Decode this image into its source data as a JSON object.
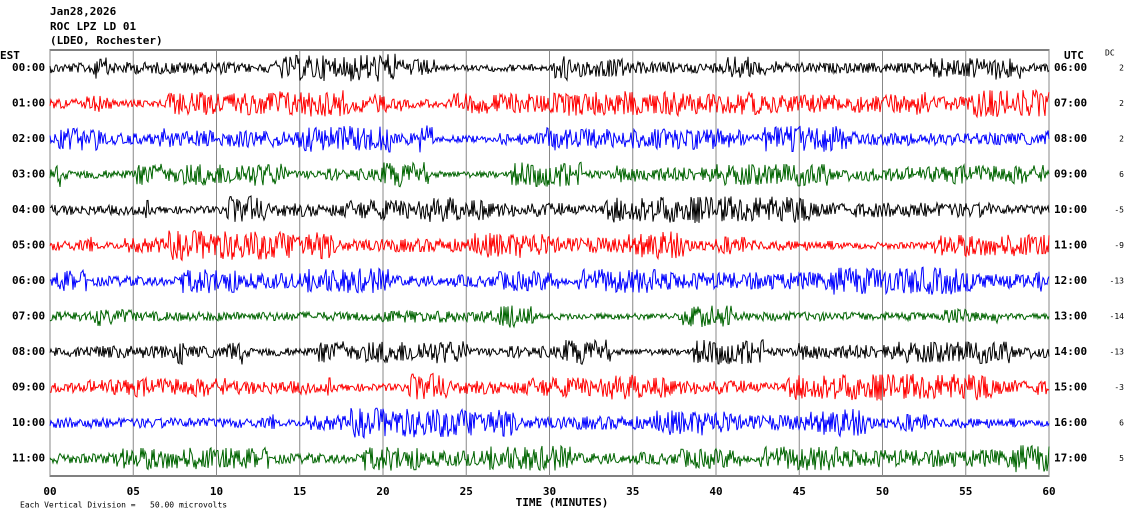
{
  "header": {
    "date": "Jan28,2026",
    "station": "ROC LPZ LD 01",
    "location": "(LDEO, Rochester)"
  },
  "left_axis_label": "EST",
  "right_axis_label": "UTC",
  "dc_label": "DC",
  "rows": [
    {
      "est": "00:00",
      "utc": "06:00",
      "dc": 2,
      "color": "#000000"
    },
    {
      "est": "01:00",
      "utc": "07:00",
      "dc": 2,
      "color": "#ff0000"
    },
    {
      "est": "02:00",
      "utc": "08:00",
      "dc": 2,
      "color": "#0000ff"
    },
    {
      "est": "03:00",
      "utc": "09:00",
      "dc": 6,
      "color": "#006400"
    },
    {
      "est": "04:00",
      "utc": "10:00",
      "dc": -5,
      "color": "#000000"
    },
    {
      "est": "05:00",
      "utc": "11:00",
      "dc": -9,
      "color": "#ff0000"
    },
    {
      "est": "06:00",
      "utc": "12:00",
      "dc": -13,
      "color": "#0000ff"
    },
    {
      "est": "07:00",
      "utc": "13:00",
      "dc": -14,
      "color": "#006400"
    },
    {
      "est": "08:00",
      "utc": "14:00",
      "dc": -13,
      "color": "#000000"
    },
    {
      "est": "09:00",
      "utc": "15:00",
      "dc": -3,
      "color": "#ff0000"
    },
    {
      "est": "10:00",
      "utc": "16:00",
      "dc": 6,
      "color": "#0000ff"
    },
    {
      "est": "11:00",
      "utc": "17:00",
      "dc": 5,
      "color": "#006400"
    }
  ],
  "x_axis": {
    "ticks": [
      "00",
      "05",
      "10",
      "15",
      "20",
      "25",
      "30",
      "35",
      "40",
      "45",
      "50",
      "55",
      "60"
    ],
    "label": "TIME (MINUTES)"
  },
  "footer": "Each Vertical Division =   50.00 microvolts"
}
